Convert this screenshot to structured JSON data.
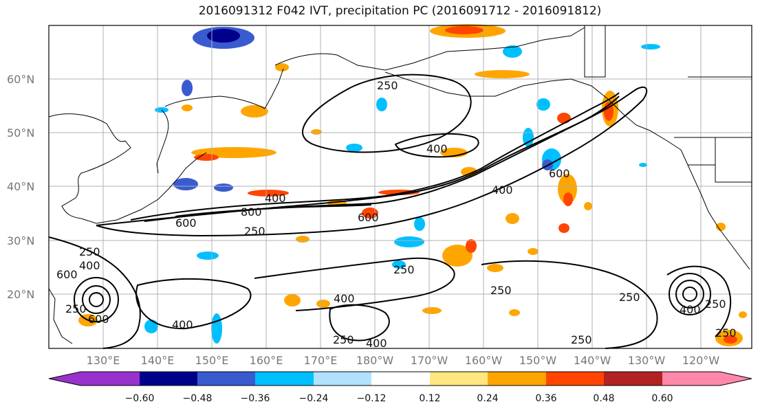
{
  "title": "2016091312 F042 IVT, precipitation PC (2016091712 - 2016091812)",
  "lat_labels": [
    {
      "text": "60°N",
      "lat": 60
    },
    {
      "text": "50°N",
      "lat": 50
    },
    {
      "text": "40°N",
      "lat": 40
    },
    {
      "text": "30°N",
      "lat": 30
    },
    {
      "text": "20°N",
      "lat": 20
    }
  ],
  "lon_labels": [
    "130°E",
    "140°E",
    "150°E",
    "160°E",
    "170°E",
    "180°W",
    "170°W",
    "160°W",
    "150°W",
    "140°W",
    "130°W",
    "120°W"
  ],
  "contour_labels": [
    "250",
    "400",
    "600",
    "800"
  ],
  "colorbar": {
    "ticks": [
      "−0.60",
      "−0.48",
      "−0.36",
      "−0.24",
      "−0.12",
      "0.12",
      "0.24",
      "0.36",
      "0.48",
      "0.60"
    ],
    "colors": [
      "#9932cc",
      "#00008b",
      "#3a5bd0",
      "#00bfff",
      "#b0e2ff",
      "#ffffff",
      "#ffe680",
      "#ffa500",
      "#ff4500",
      "#b22222",
      "#ff88aa"
    ]
  },
  "map": {
    "lon_range": [
      "120°E",
      "115°W"
    ],
    "lat_range": [
      "10°N",
      "70°N"
    ],
    "grid": true,
    "ivt_contour_levels": [
      250,
      400,
      600,
      800
    ],
    "precip_pc_levels": [
      -0.6,
      -0.48,
      -0.36,
      -0.24,
      -0.12,
      0.12,
      0.24,
      0.36,
      0.48,
      0.6
    ]
  }
}
